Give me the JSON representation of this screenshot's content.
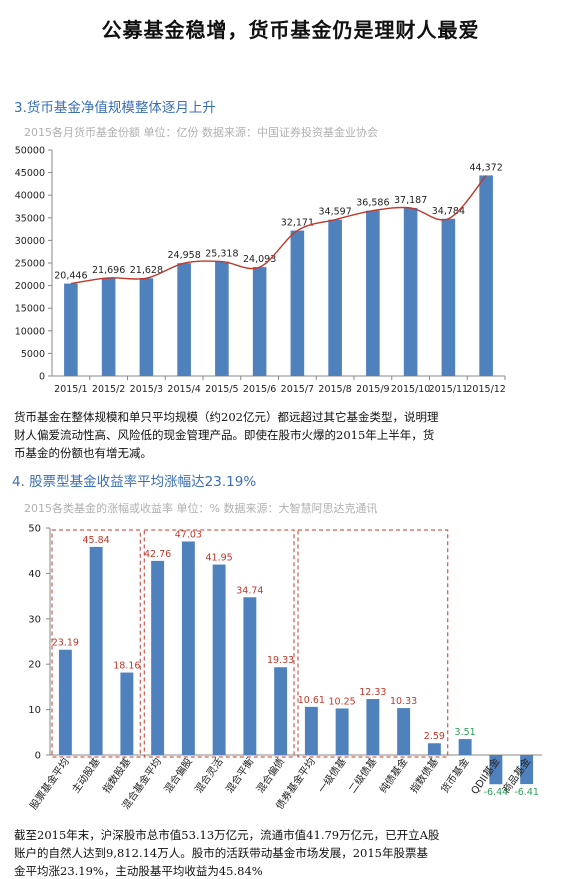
{
  "page": {
    "title": "公募基金稳增，货币基金仍是理财人最爱"
  },
  "section1": {
    "heading": "3.货币基金净值规模整体逐月上升",
    "subtitle": "2015各月货币基金份额  单位：亿份  数据来源：中国证券投资基金业协会",
    "paragraph": [
      "货币基金在整体规模和单只平均规模（约202亿元）都远超过其它基金类型，说明理",
      "财人偏爱流动性高、风险低的现金管理产品。即使在股市火爆的2015年上半年，货",
      "币基金的份额也有增无减。"
    ]
  },
  "section2": {
    "heading": "4. 股票型基金收益率平均涨幅达23.19%",
    "subtitle": "2015各类基金的涨幅或收益率  单位：%  数据来源：大智慧阿思达克通讯",
    "paragraph": [
      "截至2015年末，沪深股市总市值53.13万亿元，流通市值41.79万亿元，已开立A股",
      "账户的自然人达到9,812.14万人。股市的活跃带动基金市场发展，2015年股票基",
      "金平均涨23.19%，主动股基平均收益为45.84%"
    ]
  },
  "chart_data": [
    {
      "type": "bar",
      "categories": [
        "2015/1",
        "2015/2",
        "2015/3",
        "2015/4",
        "2015/5",
        "2015/6",
        "2015/7",
        "2015/8",
        "2015/9",
        "2015/10",
        "2015/11",
        "2015/12"
      ],
      "values": [
        20446,
        21696,
        21628,
        24958,
        25318,
        24093,
        32171,
        34597,
        36586,
        37187,
        34784,
        44372
      ],
      "value_labels": [
        "20,446",
        "21,696",
        "21,628",
        "24,958",
        "25,318",
        "24,093",
        "32,171",
        "34,597",
        "36,586",
        "37,187",
        "34,784",
        "44,372"
      ],
      "yticks": [
        "0",
        "5000",
        "10000",
        "15000",
        "20000",
        "25000",
        "30000",
        "35000",
        "40000",
        "45000",
        "50000"
      ],
      "ylim": [
        0,
        50000
      ],
      "trendline": true,
      "grid": false,
      "colors": {
        "bar": "#4f81bd",
        "trend": "#c0392b",
        "label": "#222222"
      }
    },
    {
      "type": "bar",
      "categories": [
        "股票基金平均",
        "主动股基",
        "指数股基",
        "混合基金平均",
        "混合偏股",
        "混合灵活",
        "混合平衡",
        "混合偏债",
        "债券基金平均",
        "一级债基",
        "二级债基",
        "纯债基金",
        "指数债基",
        "货币基金",
        "QDII基金",
        "商品基金"
      ],
      "values": [
        23.19,
        45.84,
        18.16,
        42.76,
        47.03,
        41.95,
        34.74,
        19.33,
        10.61,
        10.25,
        12.33,
        10.33,
        2.59,
        3.51,
        -6.44,
        -6.41
      ],
      "value_labels": [
        "23.19",
        "45.84",
        "18.16",
        "42.76",
        "47.03",
        "41.95",
        "34.74",
        "19.33",
        "10.61",
        "10.25",
        "12.33",
        "10.33",
        "2.59",
        "3.51",
        "-6.44",
        "-6.41"
      ],
      "yticks": [
        "0",
        "10",
        "20",
        "30",
        "40",
        "50"
      ],
      "ylim": [
        -7,
        50
      ],
      "grid": false,
      "groups": [
        [
          0,
          2
        ],
        [
          3,
          7
        ],
        [
          8,
          12
        ]
      ],
      "colors": {
        "bar": "#4f81bd",
        "label_default": "#c0392b",
        "label_money": "#2e9e5b",
        "label_negative": "#2e9e5b",
        "group_box": "#c0392b"
      }
    }
  ]
}
